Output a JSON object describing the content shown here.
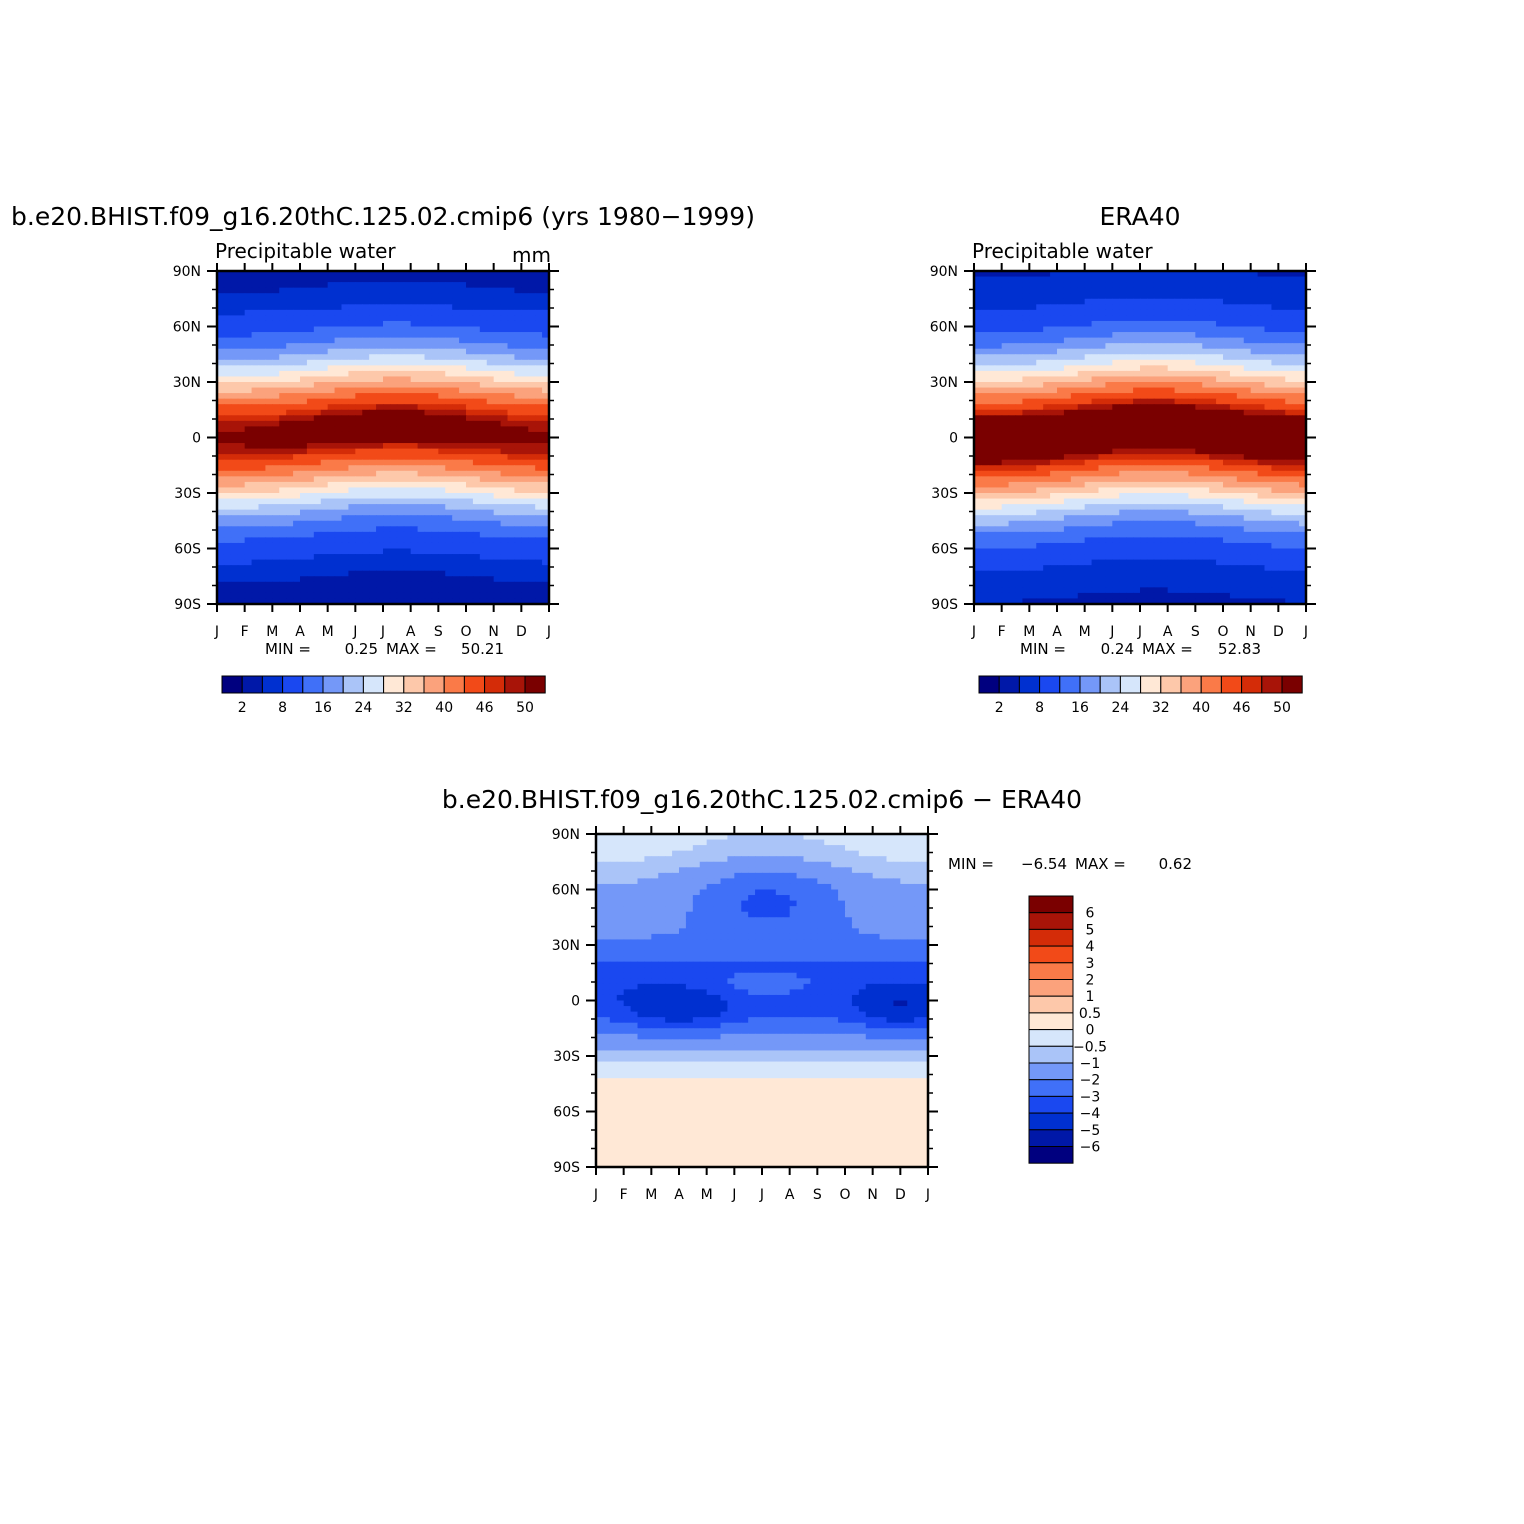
{
  "chart_data": [
    {
      "type": "heatmap",
      "title": "b.e20.BHIST.f09_g16.20thC.125.02.cmip6 (yrs 1980−1999)",
      "subtitle": "Precipitable water",
      "units": "mm",
      "x_tick_labels": [
        "J",
        "F",
        "M",
        "A",
        "M",
        "J",
        "J",
        "A",
        "S",
        "O",
        "N",
        "D",
        "J"
      ],
      "y_tick_labels": [
        "90S",
        "60S",
        "30S",
        "0",
        "30N",
        "60N",
        "90N"
      ],
      "xlim": [
        0,
        12
      ],
      "ylim": [
        -90,
        90
      ],
      "min_label": "MIN =",
      "min_value": "0.25",
      "max_label": "MAX =",
      "max_value": "50.21",
      "stats": {
        "min": 0.25,
        "max": 50.21
      },
      "colorbar_levels": [
        0.5,
        2,
        4,
        8,
        12,
        16,
        20,
        24,
        28,
        32,
        36,
        40,
        44,
        46,
        48,
        50
      ],
      "colorbar_labels": [
        "2",
        "8",
        "16",
        "24",
        "32",
        "40",
        "46",
        "50"
      ],
      "grid": false
    },
    {
      "type": "heatmap",
      "title": "ERA40",
      "subtitle": "Precipitable water",
      "x_tick_labels": [
        "J",
        "F",
        "M",
        "A",
        "M",
        "J",
        "J",
        "A",
        "S",
        "O",
        "N",
        "D",
        "J"
      ],
      "y_tick_labels": [
        "90S",
        "60S",
        "30S",
        "0",
        "30N",
        "60N",
        "90N"
      ],
      "xlim": [
        0,
        12
      ],
      "ylim": [
        -90,
        90
      ],
      "min_label": "MIN =",
      "min_value": "0.24",
      "max_label": "MAX =",
      "max_value": "52.83",
      "stats": {
        "min": 0.24,
        "max": 52.83
      },
      "colorbar_levels": [
        0.5,
        2,
        4,
        8,
        12,
        16,
        20,
        24,
        28,
        32,
        36,
        40,
        44,
        46,
        48,
        50
      ],
      "colorbar_labels": [
        "2",
        "8",
        "16",
        "24",
        "32",
        "40",
        "46",
        "50"
      ],
      "grid": false
    },
    {
      "type": "heatmap",
      "title": "b.e20.BHIST.f09_g16.20thC.125.02.cmip6 − ERA40",
      "x_tick_labels": [
        "J",
        "F",
        "M",
        "A",
        "M",
        "J",
        "J",
        "A",
        "S",
        "O",
        "N",
        "D",
        "J"
      ],
      "y_tick_labels": [
        "90S",
        "60S",
        "30S",
        "0",
        "30N",
        "60N",
        "90N"
      ],
      "xlim": [
        0,
        12
      ],
      "ylim": [
        -90,
        90
      ],
      "min_label": "MIN =",
      "min_value": "−6.54",
      "max_label": "MAX =",
      "max_value": "0.62",
      "stats": {
        "min": -6.54,
        "max": 0.62
      },
      "colorbar_levels": [
        -6,
        -5,
        -4,
        -3,
        -2,
        -1,
        -0.5,
        0,
        0.5,
        1,
        2,
        3,
        4,
        5,
        6
      ],
      "colorbar_labels": [
        "6",
        "5",
        "4",
        "3",
        "2",
        "1",
        "0.5",
        "0",
        "−0.5",
        "−1",
        "−2",
        "−3",
        "−4",
        "−5",
        "−6"
      ],
      "colorbar_orientation": "vertical",
      "grid": false
    }
  ],
  "colors": {
    "sequential": [
      "#00007f",
      "#0018a8",
      "#0030d0",
      "#1a48f0",
      "#4070f8",
      "#7498f8",
      "#aac4f8",
      "#d6e6fb",
      "#ffe8d6",
      "#fdc8aa",
      "#fba27c",
      "#fa7a48",
      "#f24a18",
      "#d42c08",
      "#a81408",
      "#7a0000"
    ],
    "diverging": [
      "#00007f",
      "#0018a8",
      "#0030d0",
      "#1a48f0",
      "#4070f8",
      "#7498f8",
      "#aac4f8",
      "#d6e6fb",
      "#ffe8d6",
      "#fdc8aa",
      "#fba27c",
      "#fa7a48",
      "#f24a18",
      "#d42c08",
      "#a81408",
      "#7a0000"
    ]
  }
}
